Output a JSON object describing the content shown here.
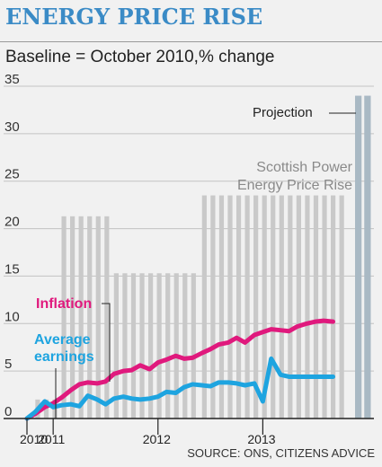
{
  "header": {
    "title": "ENERGY PRICE RISE",
    "subtitle": "Baseline = October 2010,% change",
    "source": "SOURCE: ONS, CITIZENS ADVICE"
  },
  "colors": {
    "background": "#f1f1f1",
    "title": "#3b8bc6",
    "bars": "#c9c9c9",
    "projection_bars": "#a9b9c4",
    "inflation": "#e0197d",
    "average_earnings": "#1ea4e0"
  },
  "chart_data": {
    "type": "line",
    "title": "ENERGY PRICE RISE",
    "subtitle": "Baseline = October 2010,% change",
    "ylim": [
      0,
      35
    ],
    "yticks": [
      0,
      5,
      10,
      15,
      20,
      25,
      30,
      35
    ],
    "xlim": [
      2010.75,
      2014.06
    ],
    "xticks": [
      {
        "value": 2010.75,
        "label": "2010"
      },
      {
        "value": 2011.0,
        "label": "2011"
      },
      {
        "value": 2012.0,
        "label": "2012"
      },
      {
        "value": 2013.0,
        "label": "2013"
      }
    ],
    "grid": true,
    "annotations": {
      "inflation_label": "Inflation",
      "earnings_label_line1": "Average",
      "earnings_label_line2": "earnings",
      "bars_label_line1": "Scottish Power",
      "bars_label_line2": "Energy Price Rise",
      "projection_label": "Projection"
    },
    "bar_series": {
      "name": "Scottish Power Energy Price Rise",
      "segments": [
        {
          "start": 2010.83,
          "end": 2011.08,
          "value": 2.0
        },
        {
          "start": 2011.08,
          "end": 2011.58,
          "value": 21.3
        },
        {
          "start": 2011.58,
          "end": 2012.42,
          "value": 15.3
        },
        {
          "start": 2012.42,
          "end": 2013.83,
          "value": 23.5
        }
      ],
      "projection": {
        "start": 2013.88,
        "end": 2014.03,
        "value": 34.0
      }
    },
    "series": [
      {
        "name": "Inflation",
        "x": [
          2010.75,
          2010.83,
          2010.92,
          2011.0,
          2011.08,
          2011.17,
          2011.25,
          2011.33,
          2011.42,
          2011.5,
          2011.58,
          2011.67,
          2011.75,
          2011.83,
          2011.92,
          2012.0,
          2012.08,
          2012.17,
          2012.25,
          2012.33,
          2012.42,
          2012.5,
          2012.58,
          2012.67,
          2012.75,
          2012.83,
          2012.92,
          2013.0,
          2013.08,
          2013.17,
          2013.25,
          2013.33,
          2013.42,
          2013.5,
          2013.58,
          2013.67
        ],
        "y": [
          0.0,
          0.5,
          1.2,
          1.6,
          2.2,
          3.0,
          3.6,
          3.8,
          3.7,
          3.9,
          4.7,
          5.0,
          5.1,
          5.6,
          5.2,
          5.9,
          6.2,
          6.6,
          6.3,
          6.4,
          6.9,
          7.3,
          7.8,
          8.0,
          8.5,
          8.0,
          8.8,
          9.1,
          9.4,
          9.3,
          9.2,
          9.7,
          10.0,
          10.2,
          10.3,
          10.2
        ]
      },
      {
        "name": "Average earnings",
        "x": [
          2010.75,
          2010.83,
          2010.92,
          2011.0,
          2011.08,
          2011.17,
          2011.25,
          2011.33,
          2011.42,
          2011.5,
          2011.58,
          2011.67,
          2011.75,
          2011.83,
          2011.92,
          2012.0,
          2012.08,
          2012.17,
          2012.25,
          2012.33,
          2012.42,
          2012.5,
          2012.58,
          2012.67,
          2012.75,
          2012.83,
          2012.92,
          2013.0,
          2013.08,
          2013.17,
          2013.25,
          2013.33,
          2013.42,
          2013.5,
          2013.58,
          2013.67
        ],
        "y": [
          0.0,
          0.7,
          1.8,
          1.2,
          1.4,
          1.5,
          1.3,
          2.4,
          2.0,
          1.5,
          2.1,
          2.3,
          2.1,
          2.0,
          2.1,
          2.3,
          2.8,
          2.7,
          3.3,
          3.6,
          3.5,
          3.4,
          3.8,
          3.8,
          3.7,
          3.5,
          3.7,
          1.8,
          6.3,
          4.6,
          4.4,
          4.4,
          4.4,
          4.4,
          4.4,
          4.4
        ]
      }
    ]
  }
}
